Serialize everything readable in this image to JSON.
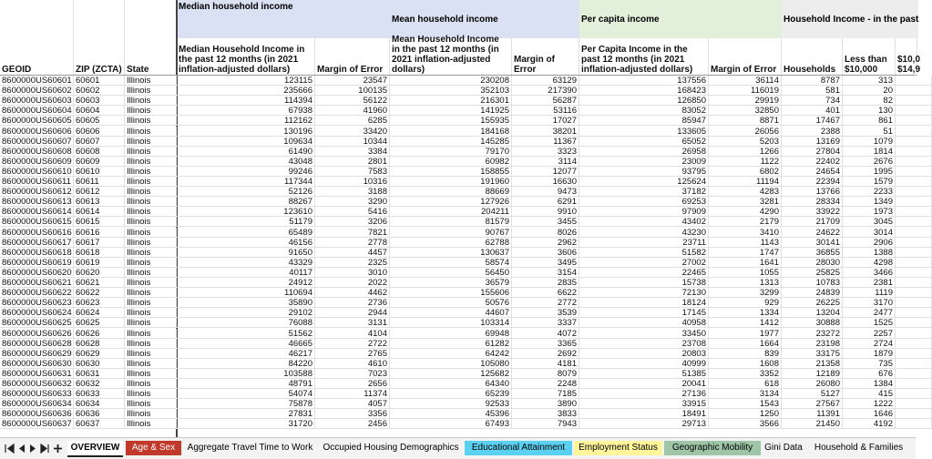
{
  "sheet": {
    "groups": [
      {
        "label": "Median household income",
        "color": "#d9e1f2"
      },
      {
        "label": "Mean household income",
        "color": "#d9e1f2"
      },
      {
        "label": "Per capita income",
        "color": "#e2efda"
      },
      {
        "label": "Household Income - in the past",
        "color": "#ededed"
      }
    ],
    "columns": [
      "GEOID",
      "ZIP (ZCTA)",
      "State",
      "Median Household Income in the past 12 months (in 2021 inflation-adjusted dollars)",
      "Margin of Error",
      "Mean Household Income in the past 12 months (in 2021 inflation-adjusted dollars)",
      "Margin of Error",
      "Per Capita Income in the past 12 months (in 2021 inflation-adjusted dollars)",
      "Margin of Error",
      "Households",
      "Less than $10,000",
      "$10,0 $14,9"
    ],
    "rows": [
      [
        "8600000US60601",
        "60601",
        "Illinois",
        123115,
        23547,
        230208,
        63129,
        137556,
        36114,
        8787,
        313
      ],
      [
        "8600000US60602",
        "60602",
        "Illinois",
        235666,
        100135,
        352103,
        217390,
        168423,
        116019,
        581,
        20
      ],
      [
        "8600000US60603",
        "60603",
        "Illinois",
        114394,
        56122,
        216301,
        56287,
        126850,
        29919,
        734,
        82
      ],
      [
        "8600000US60604",
        "60604",
        "Illinois",
        67938,
        41960,
        141925,
        53116,
        83052,
        32850,
        401,
        130
      ],
      [
        "8600000US60605",
        "60605",
        "Illinois",
        112162,
        6285,
        155935,
        17027,
        85947,
        8871,
        17467,
        861
      ],
      [
        "8600000US60606",
        "60606",
        "Illinois",
        130196,
        33420,
        184168,
        38201,
        133605,
        26056,
        2388,
        51
      ],
      [
        "8600000US60607",
        "60607",
        "Illinois",
        109634,
        10344,
        145285,
        11367,
        65052,
        5203,
        13169,
        1079
      ],
      [
        "8600000US60608",
        "60608",
        "Illinois",
        61490,
        3384,
        79170,
        3323,
        26958,
        1266,
        27804,
        1814
      ],
      [
        "8600000US60609",
        "60609",
        "Illinois",
        43048,
        2801,
        60982,
        3114,
        23009,
        1122,
        22402,
        2676
      ],
      [
        "8600000US60610",
        "60610",
        "Illinois",
        99246,
        7583,
        158855,
        12077,
        93795,
        6802,
        24654,
        1995
      ],
      [
        "8600000US60611",
        "60611",
        "Illinois",
        117344,
        10316,
        191960,
        16630,
        125624,
        11194,
        22394,
        1579
      ],
      [
        "8600000US60612",
        "60612",
        "Illinois",
        52126,
        3188,
        88669,
        9473,
        37182,
        4283,
        13766,
        2233
      ],
      [
        "8600000US60613",
        "60613",
        "Illinois",
        88267,
        3290,
        127926,
        6291,
        69253,
        3281,
        28334,
        1349
      ],
      [
        "8600000US60614",
        "60614",
        "Illinois",
        123610,
        5416,
        204211,
        9910,
        97909,
        4290,
        33922,
        1973
      ],
      [
        "8600000US60615",
        "60615",
        "Illinois",
        51179,
        3206,
        81579,
        3455,
        43402,
        2179,
        21709,
        3045
      ],
      [
        "8600000US60616",
        "60616",
        "Illinois",
        65489,
        7821,
        90767,
        8026,
        43230,
        3410,
        24622,
        3014
      ],
      [
        "8600000US60617",
        "60617",
        "Illinois",
        46156,
        2778,
        62788,
        2962,
        23711,
        1143,
        30141,
        2906
      ],
      [
        "8600000US60618",
        "60618",
        "Illinois",
        91650,
        4457,
        130637,
        3606,
        51582,
        1747,
        36855,
        1388
      ],
      [
        "8600000US60619",
        "60619",
        "Illinois",
        43329,
        2325,
        58574,
        3495,
        27002,
        1641,
        28030,
        4298
      ],
      [
        "8600000US60620",
        "60620",
        "Illinois",
        40117,
        3010,
        56450,
        3154,
        22465,
        1055,
        25825,
        3466
      ],
      [
        "8600000US60621",
        "60621",
        "Illinois",
        24912,
        2022,
        36579,
        2835,
        15738,
        1313,
        10783,
        2381
      ],
      [
        "8600000US60622",
        "60622",
        "Illinois",
        110694,
        4462,
        155606,
        6622,
        72130,
        3299,
        24839,
        1119
      ],
      [
        "8600000US60623",
        "60623",
        "Illinois",
        35890,
        2736,
        50576,
        2772,
        18124,
        929,
        26225,
        3170
      ],
      [
        "8600000US60624",
        "60624",
        "Illinois",
        29102,
        2944,
        44607,
        3539,
        17145,
        1334,
        13204,
        2477
      ],
      [
        "8600000US60625",
        "60625",
        "Illinois",
        76088,
        3131,
        103314,
        3337,
        40958,
        1412,
        30888,
        1525
      ],
      [
        "8600000US60626",
        "60626",
        "Illinois",
        51562,
        4104,
        69948,
        4072,
        33450,
        1977,
        23272,
        2257
      ],
      [
        "8600000US60628",
        "60628",
        "Illinois",
        46665,
        2722,
        61282,
        3365,
        23708,
        1664,
        23198,
        2724
      ],
      [
        "8600000US60629",
        "60629",
        "Illinois",
        46217,
        2765,
        64242,
        2692,
        20803,
        839,
        33175,
        1879
      ],
      [
        "8600000US60630",
        "60630",
        "Illinois",
        84220,
        4610,
        105080,
        4181,
        40999,
        1608,
        21358,
        735
      ],
      [
        "8600000US60631",
        "60631",
        "Illinois",
        103588,
        7023,
        125682,
        8079,
        51385,
        3352,
        12189,
        676
      ],
      [
        "8600000US60632",
        "60632",
        "Illinois",
        48791,
        2656,
        64340,
        2248,
        20041,
        618,
        26080,
        1384
      ],
      [
        "8600000US60633",
        "60633",
        "Illinois",
        54074,
        11374,
        65239,
        7185,
        27136,
        3134,
        5127,
        415
      ],
      [
        "8600000US60634",
        "60634",
        "Illinois",
        75878,
        4057,
        92533,
        3890,
        33915,
        1543,
        27567,
        1222
      ],
      [
        "8600000US60636",
        "60636",
        "Illinois",
        27831,
        3356,
        45396,
        3833,
        18491,
        1250,
        11391,
        1646
      ],
      [
        "8600000US60637",
        "60637",
        "Illinois",
        31720,
        2456,
        67493,
        7943,
        29713,
        3566,
        21450,
        4192
      ]
    ]
  },
  "tabs": [
    {
      "label": "OVERVIEW",
      "active": true
    },
    {
      "label": "Age & Sex",
      "color": "#c0392b",
      "text_color": "#ffffff"
    },
    {
      "label": "Aggregate Travel Time to Work"
    },
    {
      "label": "Occupied Housing Demographics"
    },
    {
      "label": "Educational Attainment",
      "color": "#5bd0f0"
    },
    {
      "label": "Employment Status",
      "color": "#fff59a"
    },
    {
      "label": "Geographic Mobility",
      "color": "#9fc5a8"
    },
    {
      "label": "Gini Data"
    },
    {
      "label": "Household & Families"
    }
  ]
}
